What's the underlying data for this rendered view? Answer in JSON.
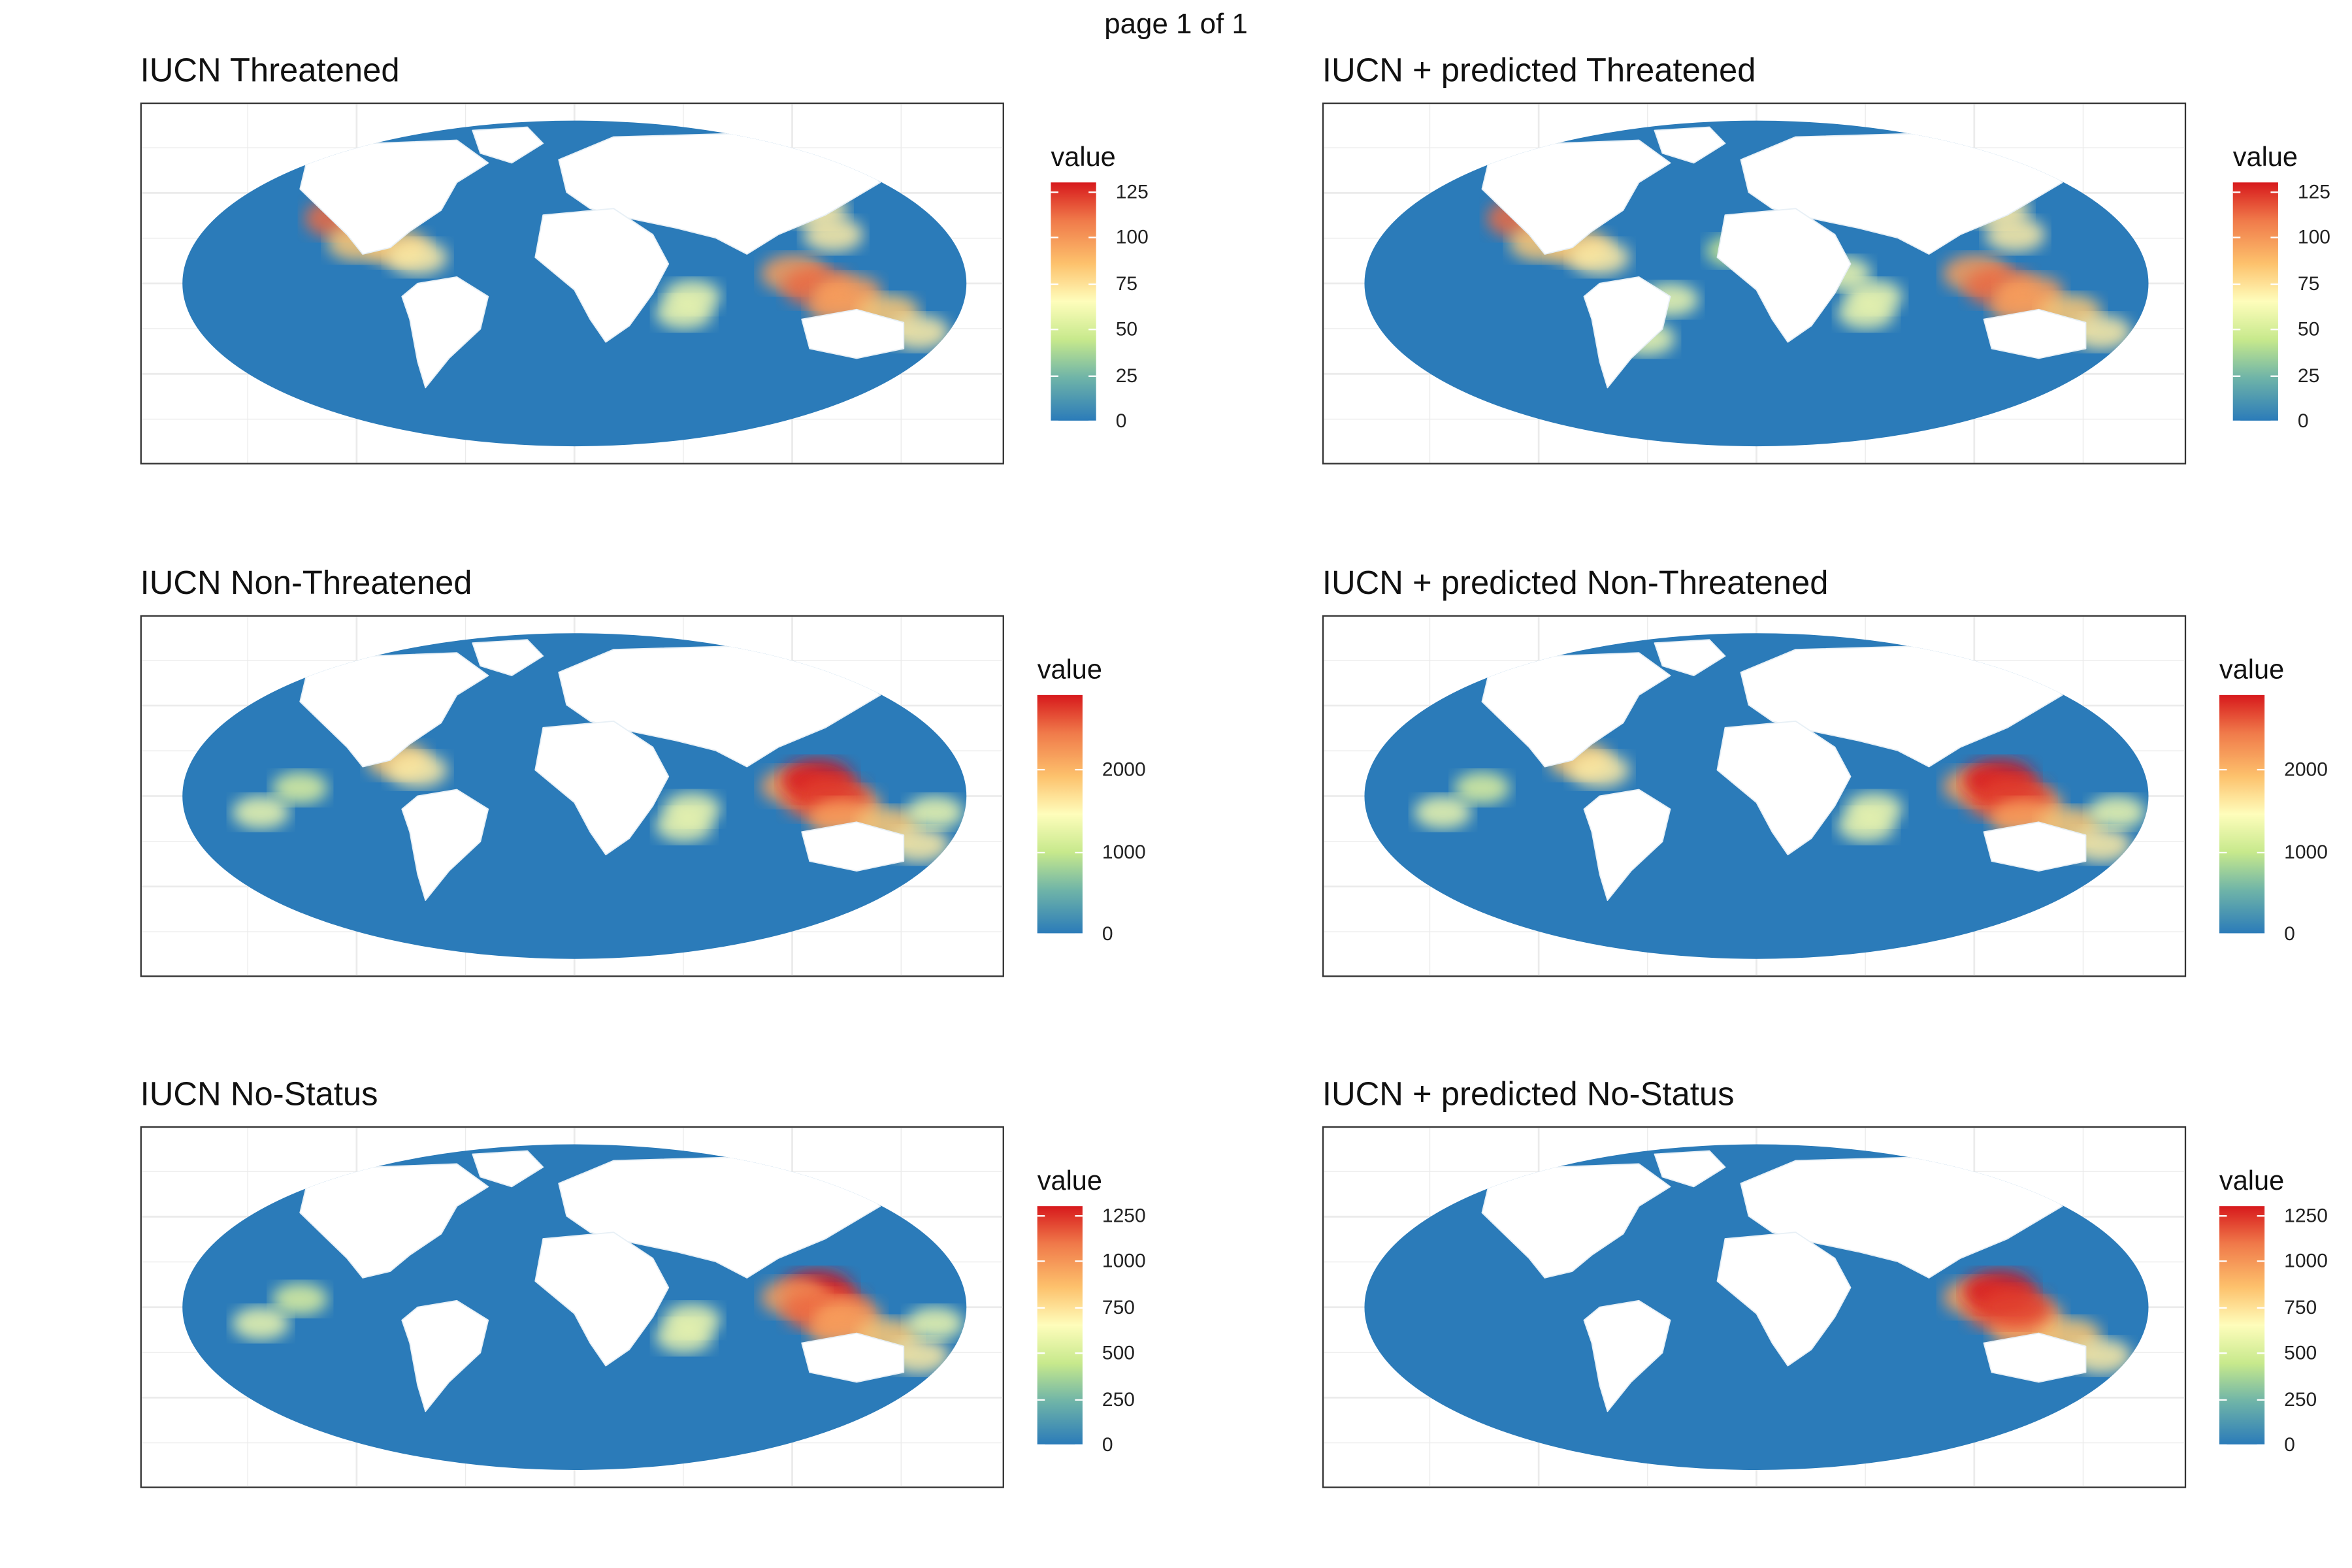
{
  "page_label": "page 1 of 1",
  "axis": {
    "y_ticks": [
      "5e+06",
      "0e+00",
      "-5e+06"
    ],
    "x_ticks": [
      "-1e+07",
      "0e+00",
      "1e+07"
    ]
  },
  "legend_title": "value",
  "colors": {
    "ocean_low": "#2b7bb9",
    "mid_green": "#a6d96a",
    "mid_yellow": "#fefdbb",
    "mid_orange": "#fdae61",
    "high_red": "#d7191c",
    "land": "#ffffff",
    "grid": "#ebebeb"
  },
  "panels": [
    {
      "title": "IUCN Threatened",
      "legend_labels": [
        "125",
        "100",
        "75",
        "50",
        "25",
        "0"
      ],
      "legend_max": 130,
      "hotspots": [
        "pacific-coast-america",
        "caribbean",
        "east-asia-coast",
        "indo-pacific",
        "madagascar",
        "australia-north"
      ]
    },
    {
      "title": "IUCN + predicted  Threatened",
      "legend_labels": [
        "125",
        "100",
        "75",
        "50",
        "25",
        "0"
      ],
      "legend_max": 130,
      "hotspots": [
        "pacific-coast-america",
        "caribbean",
        "east-asia-coast",
        "indo-pacific",
        "madagascar",
        "australia-north",
        "south-america-coast",
        "africa-coast"
      ]
    },
    {
      "title": "IUCN Non-Threatened",
      "legend_labels": [
        "2000",
        "1000",
        "0"
      ],
      "legend_max": 2900,
      "hotspots": [
        "caribbean",
        "indo-pacific",
        "coral-triangle",
        "australia-north",
        "madagascar",
        "pacific-islands"
      ]
    },
    {
      "title": "IUCN + predicted  Non-Threatened",
      "legend_labels": [
        "2000",
        "1000",
        "0"
      ],
      "legend_max": 2900,
      "hotspots": [
        "caribbean",
        "indo-pacific",
        "coral-triangle",
        "australia-north",
        "madagascar",
        "pacific-islands"
      ]
    },
    {
      "title": "IUCN No-Status",
      "legend_labels": [
        "1250",
        "1000",
        "750",
        "500",
        "250",
        "0"
      ],
      "legend_max": 1300,
      "hotspots": [
        "coral-triangle",
        "indo-pacific",
        "australia-north",
        "madagascar",
        "pacific-islands"
      ]
    },
    {
      "title": "IUCN + predicted  No-Status",
      "legend_labels": [
        "1250",
        "1000",
        "750",
        "500",
        "250",
        "0"
      ],
      "legend_max": 1300,
      "hotspots": [
        "indo-pacific",
        "australia-north",
        "coral-triangle"
      ]
    }
  ]
}
